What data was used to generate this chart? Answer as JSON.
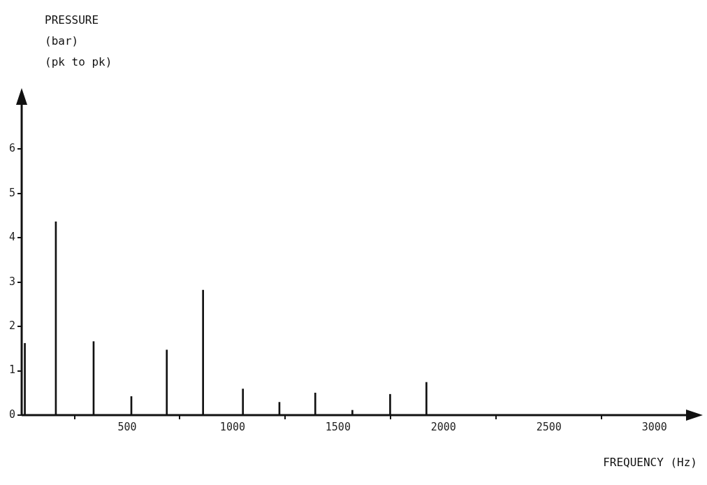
{
  "chart_data": {
    "type": "bar",
    "ylabel": "PRESSURE\n(bar)\n(pk to pk)",
    "xlabel": "FREQUENCY (Hz)",
    "x": [
      15,
      162,
      341,
      520,
      688,
      860,
      1049,
      1222,
      1392,
      1568,
      1747,
      1919
    ],
    "values": [
      1.62,
      4.36,
      1.66,
      0.42,
      1.47,
      2.82,
      0.59,
      0.29,
      0.5,
      0.11,
      0.47,
      0.74
    ],
    "color": "#111111",
    "xlim": [
      0,
      3150
    ],
    "xticks": [
      500,
      1000,
      1500,
      2000,
      2500,
      3000
    ],
    "ylim": [
      0,
      7
    ],
    "yticks": [
      0,
      1,
      2,
      3,
      4,
      5,
      6
    ],
    "grid": false,
    "legend": false
  }
}
